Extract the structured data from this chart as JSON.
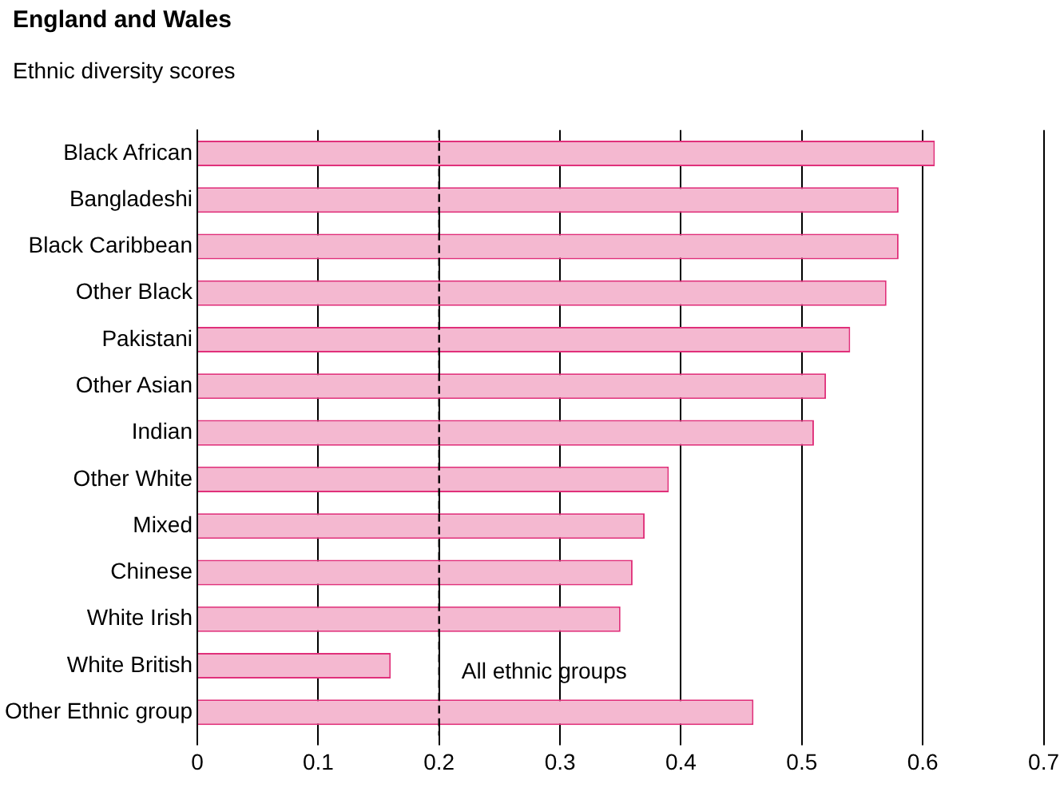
{
  "chart_data": {
    "type": "bar",
    "orientation": "horizontal",
    "title": "England and Wales",
    "subtitle": "Ethnic diversity scores",
    "categories": [
      "Black African",
      "Bangladeshi",
      "Black Caribbean",
      "Other Black",
      "Pakistani",
      "Other Asian",
      "Indian",
      "Other White",
      "Mixed",
      "Chinese",
      "White Irish",
      "White British",
      "Other Ethnic group"
    ],
    "values": [
      0.61,
      0.58,
      0.58,
      0.57,
      0.54,
      0.52,
      0.51,
      0.39,
      0.37,
      0.36,
      0.35,
      0.16,
      0.46
    ],
    "color": "#f4b8d0",
    "xlim": [
      0,
      0.7
    ],
    "xticks": [
      0,
      0.1,
      0.2,
      0.3,
      0.4,
      0.5,
      0.6,
      0.7
    ],
    "grid": "x",
    "ref_lines": [
      {
        "axis": "x",
        "value": 0.2,
        "label": "All ethnic groups",
        "color": "#000000",
        "line_style": "dashed"
      }
    ]
  }
}
